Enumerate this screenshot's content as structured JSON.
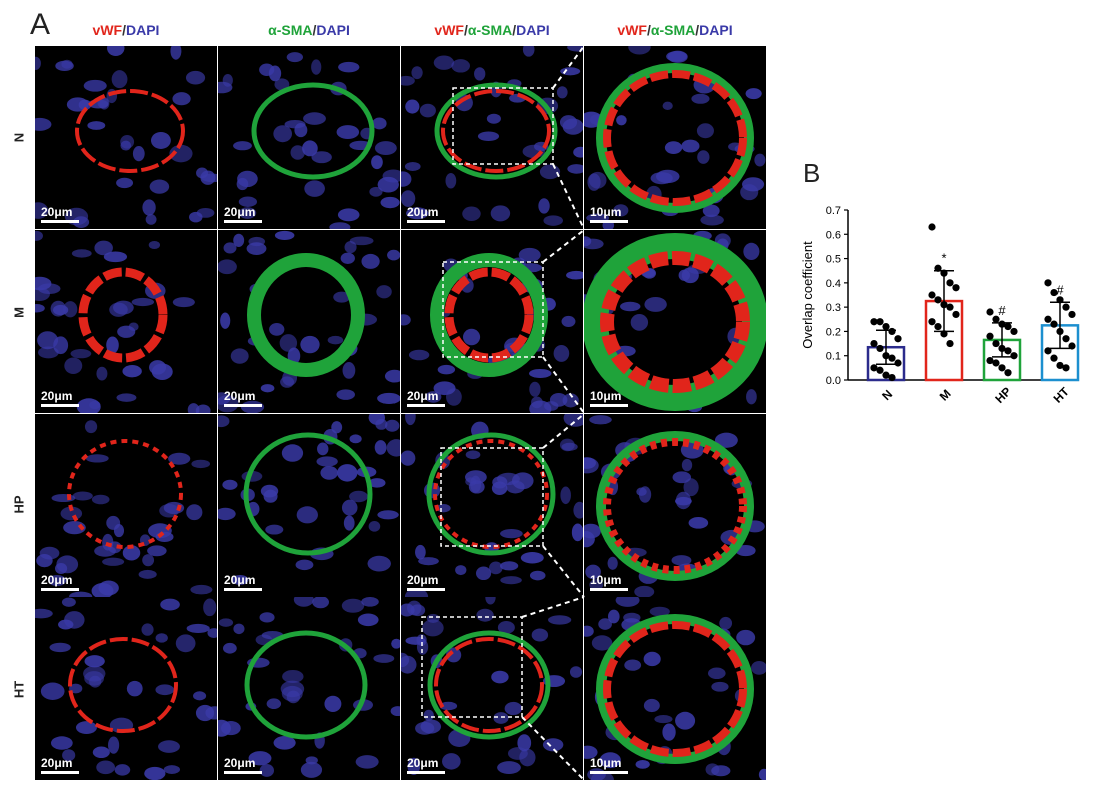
{
  "panel_a_label": "A",
  "panel_b_label": "B",
  "columns": [
    {
      "parts": [
        {
          "text": "vWF",
          "color": "red"
        },
        {
          "text": "/",
          "color": "sep"
        },
        {
          "text": "DAPI",
          "color": "blue"
        }
      ]
    },
    {
      "parts": [
        {
          "text": "α-SMA",
          "color": "green"
        },
        {
          "text": "/",
          "color": "sep"
        },
        {
          "text": "DAPI",
          "color": "blue"
        }
      ]
    },
    {
      "parts": [
        {
          "text": "vWF",
          "color": "red"
        },
        {
          "text": "/",
          "color": "sep"
        },
        {
          "text": "α-SMA",
          "color": "green"
        },
        {
          "text": "/",
          "color": "sep"
        },
        {
          "text": "DAPI",
          "color": "blue"
        }
      ]
    },
    {
      "parts": [
        {
          "text": "vWF",
          "color": "red"
        },
        {
          "text": "/",
          "color": "sep"
        },
        {
          "text": "α-SMA",
          "color": "green"
        },
        {
          "text": "/",
          "color": "sep"
        },
        {
          "text": "DAPI",
          "color": "blue"
        }
      ]
    }
  ],
  "rows": [
    "N",
    "M",
    "HP",
    "HT"
  ],
  "scale_bars": [
    "20μm",
    "20μm",
    "20μm",
    "10μm"
  ],
  "colors": {
    "vwf": "#e1251b",
    "sma": "#1fa33a",
    "dapi": "#3a3aa8"
  },
  "chart_data": {
    "type": "bar",
    "title": "",
    "xlabel": "",
    "ylabel": "Overlap coefficient",
    "ylim": [
      0,
      0.7
    ],
    "yticks": [
      0.0,
      0.1,
      0.2,
      0.3,
      0.4,
      0.5,
      0.6,
      0.7
    ],
    "categories": [
      "N",
      "M",
      "HP",
      "HT"
    ],
    "values": [
      0.135,
      0.325,
      0.165,
      0.225
    ],
    "errors": [
      0.07,
      0.125,
      0.07,
      0.095
    ],
    "bar_colors": [
      "#2b2b8c",
      "#e1251b",
      "#1fa33a",
      "#1c8fcf"
    ],
    "significance": [
      "",
      "*",
      "#",
      "#"
    ],
    "points": [
      [
        0.24,
        0.24,
        0.22,
        0.2,
        0.17,
        0.15,
        0.13,
        0.1,
        0.09,
        0.07,
        0.05,
        0.04,
        0.02,
        0.01
      ],
      [
        0.63,
        0.46,
        0.44,
        0.4,
        0.38,
        0.35,
        0.33,
        0.31,
        0.3,
        0.27,
        0.24,
        0.22,
        0.19,
        0.15
      ],
      [
        0.28,
        0.25,
        0.23,
        0.22,
        0.2,
        0.18,
        0.15,
        0.13,
        0.12,
        0.1,
        0.08,
        0.07,
        0.05,
        0.03
      ],
      [
        0.4,
        0.36,
        0.33,
        0.3,
        0.27,
        0.25,
        0.23,
        0.2,
        0.17,
        0.14,
        0.12,
        0.09,
        0.06,
        0.05
      ]
    ]
  }
}
